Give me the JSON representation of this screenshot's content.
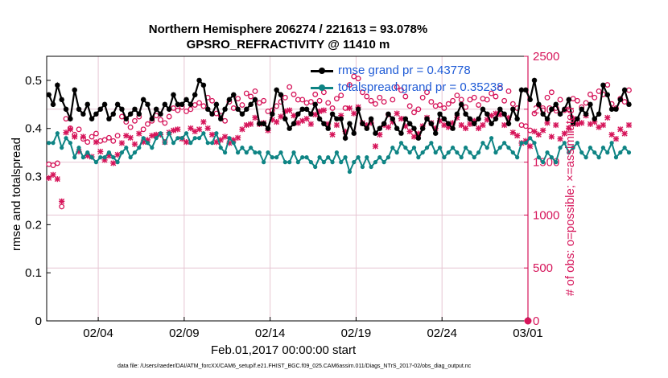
{
  "title_line1": "Northern Hemisphere 206274 / 221613 = 93.078%",
  "title_line2": "GPSRO_REFRACTIVITY @ 11410 m",
  "xlabel": "Feb.01,2017 00:00:00 start",
  "ylabel": "rmse and totalspread",
  "y2label": "# of obs: o=possible; ×=assimilated",
  "footer": "data file: /Users/raeder/DAI/ATM_forcXX/CAM6_setup/f.e21.FHIST_BGC.f09_025.CAM6assim.011/Diags_NTrS_2017-02/obs_diag_output.nc",
  "legend": {
    "rmse_label": "rmse grand pr = 0.43778",
    "spread_label": "totalspread grand pr = 0.35238"
  },
  "colors": {
    "rmse": "#000000",
    "spread": "#0e8484",
    "obs": "#d6155a",
    "legend_text": "#1f5bd6",
    "grid": "#e6c6d2"
  },
  "chart_data": {
    "type": "line",
    "x_axis": {
      "start": "2017-02-01",
      "end": "2017-03-01",
      "ticks": [
        "02/04",
        "02/09",
        "02/14",
        "02/19",
        "02/24",
        "03/01"
      ],
      "points_per_day": 4
    },
    "y_axis": {
      "ylim": [
        0,
        0.55
      ],
      "ticks": [
        0,
        0.1,
        0.2,
        0.3,
        0.4,
        0.5
      ]
    },
    "y2_axis": {
      "ylim": [
        0,
        2500
      ],
      "ticks": [
        0,
        500,
        1000,
        1500,
        2000,
        2500
      ],
      "color": "#d6155a"
    },
    "grid": true,
    "legend_position": "top-right",
    "series": [
      {
        "name": "rmse grand pr = 0.43778",
        "axis": "left",
        "values": [
          0.47,
          0.45,
          0.49,
          0.46,
          0.44,
          0.42,
          0.48,
          0.44,
          0.43,
          0.45,
          0.42,
          0.43,
          0.44,
          0.45,
          0.42,
          0.43,
          0.45,
          0.44,
          0.42,
          0.43,
          0.44,
          0.43,
          0.46,
          0.45,
          0.42,
          0.44,
          0.43,
          0.45,
          0.44,
          0.47,
          0.45,
          0.45,
          0.46,
          0.45,
          0.47,
          0.5,
          0.49,
          0.44,
          0.43,
          0.45,
          0.42,
          0.44,
          0.46,
          0.47,
          0.44,
          0.43,
          0.44,
          0.45,
          0.46,
          0.41,
          0.41,
          0.4,
          0.43,
          0.48,
          0.47,
          0.42,
          0.4,
          0.41,
          0.43,
          0.44,
          0.44,
          0.43,
          0.45,
          0.42,
          0.41,
          0.4,
          0.43,
          0.42,
          0.42,
          0.38,
          0.41,
          0.39,
          0.44,
          0.41,
          0.4,
          0.42,
          0.39,
          0.4,
          0.41,
          0.43,
          0.42,
          0.4,
          0.39,
          0.42,
          0.41,
          0.4,
          0.38,
          0.4,
          0.42,
          0.41,
          0.39,
          0.43,
          0.42,
          0.41,
          0.4,
          0.43,
          0.45,
          0.43,
          0.42,
          0.41,
          0.42,
          0.44,
          0.43,
          0.41,
          0.42,
          0.44,
          0.43,
          0.41,
          0.44,
          0.42,
          0.48,
          0.48,
          0.46,
          0.5,
          0.45,
          0.43,
          0.42,
          0.44,
          0.45,
          0.43,
          0.44,
          0.46,
          0.41,
          0.42,
          0.44,
          0.43,
          0.45,
          0.42,
          0.43,
          0.49,
          0.47,
          0.44,
          0.44,
          0.46,
          0.48,
          0.45
        ]
      },
      {
        "name": "totalspread grand pr = 0.35238",
        "axis": "left",
        "values": [
          0.37,
          0.37,
          0.39,
          0.36,
          0.38,
          0.37,
          0.34,
          0.36,
          0.34,
          0.35,
          0.34,
          0.33,
          0.34,
          0.34,
          0.35,
          0.34,
          0.33,
          0.35,
          0.36,
          0.34,
          0.35,
          0.36,
          0.38,
          0.37,
          0.36,
          0.38,
          0.39,
          0.37,
          0.39,
          0.37,
          0.38,
          0.38,
          0.39,
          0.37,
          0.38,
          0.38,
          0.39,
          0.37,
          0.37,
          0.39,
          0.36,
          0.35,
          0.38,
          0.37,
          0.35,
          0.36,
          0.35,
          0.36,
          0.35,
          0.35,
          0.33,
          0.35,
          0.34,
          0.34,
          0.35,
          0.33,
          0.33,
          0.35,
          0.33,
          0.34,
          0.34,
          0.33,
          0.32,
          0.34,
          0.33,
          0.34,
          0.33,
          0.35,
          0.33,
          0.34,
          0.31,
          0.33,
          0.34,
          0.32,
          0.34,
          0.32,
          0.33,
          0.34,
          0.33,
          0.34,
          0.36,
          0.35,
          0.37,
          0.36,
          0.35,
          0.36,
          0.34,
          0.35,
          0.36,
          0.37,
          0.35,
          0.36,
          0.34,
          0.35,
          0.36,
          0.35,
          0.34,
          0.36,
          0.35,
          0.34,
          0.35,
          0.37,
          0.36,
          0.38,
          0.35,
          0.36,
          0.37,
          0.36,
          0.35,
          0.34,
          0.37,
          0.37,
          0.38,
          0.37,
          0.34,
          0.33,
          0.35,
          0.34,
          0.33,
          0.36,
          0.37,
          0.35,
          0.36,
          0.37,
          0.35,
          0.34,
          0.36,
          0.35,
          0.34,
          0.36,
          0.35,
          0.37,
          0.34,
          0.35,
          0.36,
          0.35
        ]
      },
      {
        "name": "possible",
        "axis": "right",
        "marker": "circle",
        "values": [
          1480,
          1470,
          1490,
          1080,
          1910,
          1820,
          1760,
          1810,
          1720,
          1690,
          1740,
          1770,
          1700,
          1710,
          1730,
          1700,
          1750,
          1930,
          1880,
          1830,
          1890,
          1930,
          1810,
          1860,
          1890,
          1940,
          1900,
          1870,
          1930,
          2010,
          1990,
          2020,
          1980,
          2000,
          2040,
          2060,
          2030,
          2110,
          2080,
          1960,
          1940,
          1890,
          2070,
          2010,
          2100,
          2040,
          2150,
          2120,
          2170,
          2060,
          2080,
          1980,
          1990,
          2030,
          2070,
          2110,
          2210,
          2140,
          2090,
          2090,
          2060,
          2070,
          2140,
          2080,
          2160,
          2060,
          2010,
          2100,
          2130,
          2010,
          2230,
          2310,
          2290,
          2160,
          2120,
          2080,
          2050,
          2110,
          2070,
          1950,
          2090,
          2210,
          2180,
          2120,
          2030,
          1970,
          2000,
          2110,
          2160,
          2070,
          2030,
          2040,
          2010,
          2050,
          2080,
          2130,
          2090,
          2020,
          2090,
          2110,
          2040,
          2100,
          2090,
          2150,
          2120,
          2200,
          2080,
          2170,
          2050,
          2010,
          1850,
          1840,
          1800,
          1960,
          2040,
          1990,
          2110,
          2160,
          2010,
          2090,
          1990,
          2000,
          2100,
          2080,
          2020,
          2060,
          2140,
          2110,
          2170,
          2140,
          2230,
          2050,
          2010,
          2100,
          2070,
          2180
        ]
      },
      {
        "name": "assimilated",
        "axis": "right",
        "marker": "x",
        "values": [
          1350,
          1380,
          1340,
          1130,
          1780,
          1810,
          1740,
          1600,
          1740,
          1560,
          1550,
          1690,
          1600,
          1520,
          1560,
          1490,
          1570,
          1680,
          1750,
          1730,
          1670,
          1770,
          1690,
          1710,
          1750,
          1760,
          1760,
          1690,
          1780,
          1800,
          1810,
          1720,
          1690,
          1820,
          1790,
          1810,
          1880,
          1820,
          1760,
          1690,
          1710,
          1740,
          1680,
          1710,
          1730,
          1810,
          1850,
          1860,
          1920,
          1860,
          1870,
          1800,
          1900,
          1880,
          1930,
          1980,
          1990,
          1940,
          1870,
          1890,
          1910,
          1860,
          1950,
          1980,
          1990,
          1860,
          1760,
          1850,
          1940,
          1790,
          2010,
          1960,
          2020,
          1870,
          1850,
          1870,
          1650,
          1760,
          1850,
          1830,
          1880,
          1960,
          1910,
          1840,
          1790,
          1740,
          1770,
          1840,
          1920,
          1870,
          1820,
          1890,
          1850,
          1830,
          1870,
          1920,
          1850,
          1820,
          1860,
          1890,
          1820,
          1850,
          1900,
          1940,
          1960,
          1950,
          1850,
          1920,
          1780,
          1750,
          1680,
          1700,
          1650,
          1790,
          1760,
          1800,
          1870,
          1740,
          1850,
          1720,
          1770,
          1820,
          1910,
          1860,
          1870,
          1940,
          1860,
          1880,
          1830,
          1850,
          1920,
          1760,
          1720,
          1810,
          1770,
          1850
        ]
      }
    ]
  }
}
